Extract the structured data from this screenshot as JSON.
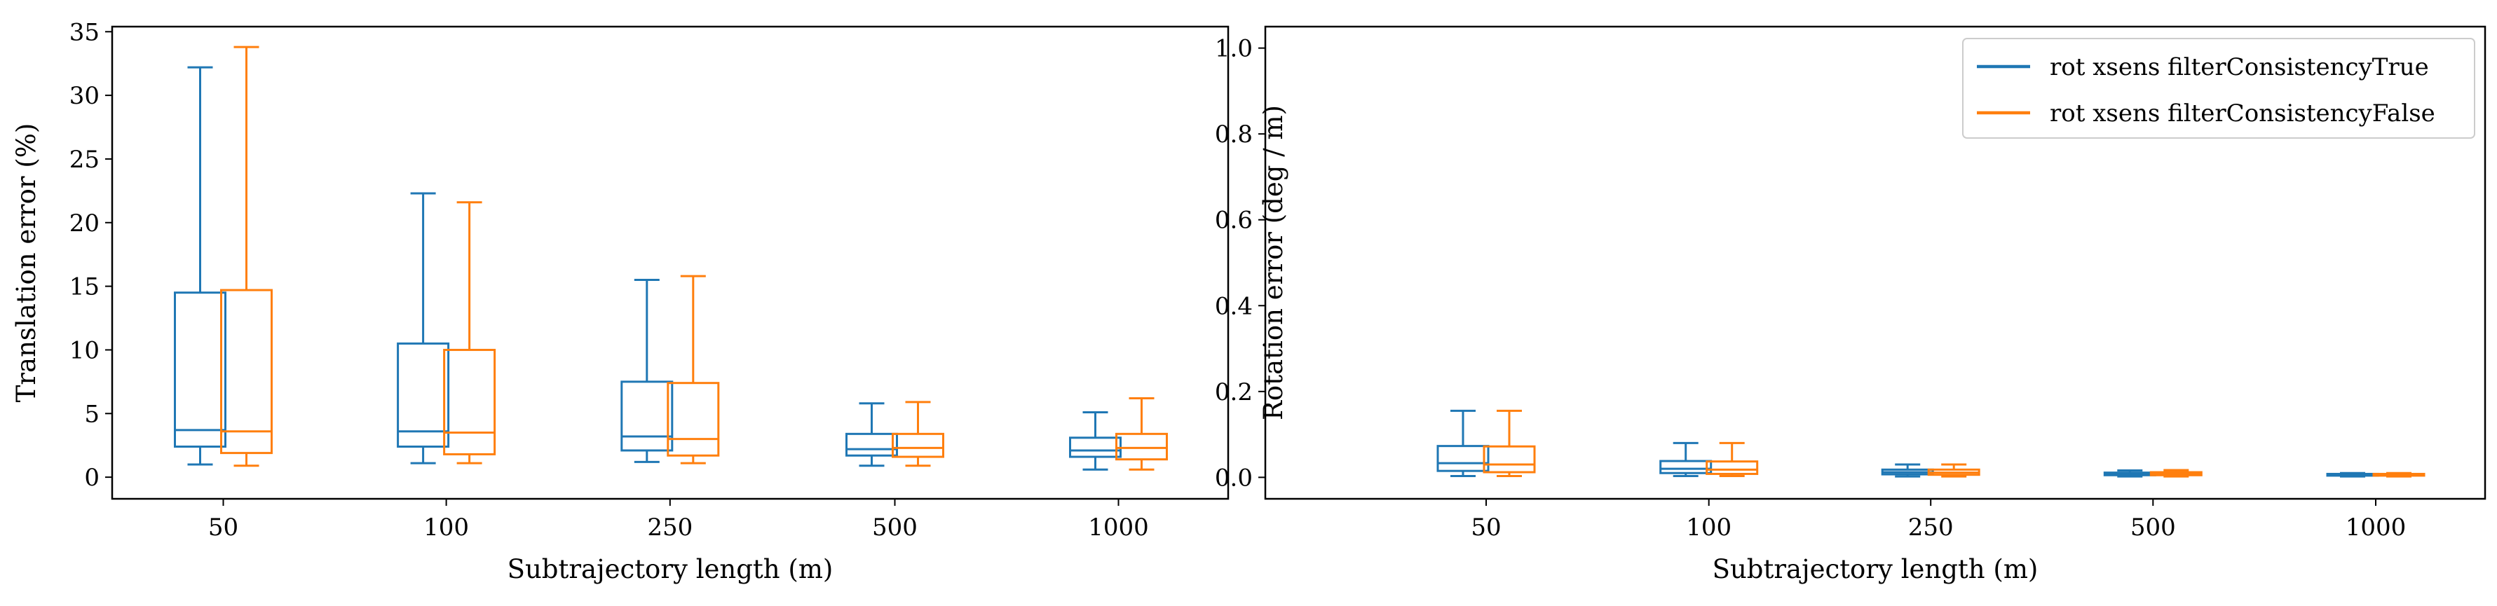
{
  "colors": {
    "series1": "#1f77b4",
    "series2": "#ff7f0e",
    "axis": "#000000",
    "legend_border": "#cccccc"
  },
  "chart_data": [
    {
      "type": "box",
      "xlabel": "Subtrajectory length (m)",
      "ylabel": "Translation error (%)",
      "categories": [
        "50",
        "100",
        "250",
        "500",
        "1000"
      ],
      "ylim": [
        -1.7,
        35.4
      ],
      "yticks": [
        0,
        5,
        10,
        15,
        20,
        25,
        30,
        35
      ],
      "ytick_labels": [
        "0",
        "5",
        "10",
        "15",
        "20",
        "25",
        "30",
        "35"
      ],
      "grid": false,
      "series": [
        {
          "boxes": [
            {
              "whislo": 1.0,
              "q1": 2.4,
              "med": 3.7,
              "q3": 14.5,
              "whishi": 32.2
            },
            {
              "whislo": 1.1,
              "q1": 2.4,
              "med": 3.6,
              "q3": 10.5,
              "whishi": 22.3
            },
            {
              "whislo": 1.2,
              "q1": 2.1,
              "med": 3.2,
              "q3": 7.5,
              "whishi": 15.5
            },
            {
              "whislo": 0.9,
              "q1": 1.7,
              "med": 2.2,
              "q3": 3.4,
              "whishi": 5.8
            },
            {
              "whislo": 0.6,
              "q1": 1.6,
              "med": 2.1,
              "q3": 3.1,
              "whishi": 5.1
            }
          ]
        },
        {
          "boxes": [
            {
              "whislo": 0.9,
              "q1": 1.9,
              "med": 3.6,
              "q3": 14.7,
              "whishi": 33.8
            },
            {
              "whislo": 1.1,
              "q1": 1.8,
              "med": 3.5,
              "q3": 10.0,
              "whishi": 21.6
            },
            {
              "whislo": 1.1,
              "q1": 1.7,
              "med": 3.0,
              "q3": 7.4,
              "whishi": 15.8
            },
            {
              "whislo": 0.9,
              "q1": 1.6,
              "med": 2.3,
              "q3": 3.4,
              "whishi": 5.9
            },
            {
              "whislo": 0.6,
              "q1": 1.4,
              "med": 2.3,
              "q3": 3.4,
              "whishi": 6.2
            }
          ]
        }
      ]
    },
    {
      "type": "box",
      "xlabel": "Subtrajectory length (m)",
      "ylabel": "Rotation error (deg / m)",
      "categories": [
        "50",
        "100",
        "250",
        "500",
        "1000"
      ],
      "ylim": [
        -0.05,
        1.05
      ],
      "yticks": [
        0.0,
        0.2,
        0.4,
        0.6,
        0.8,
        1.0
      ],
      "ytick_labels": [
        "0.0",
        "0.2",
        "0.4",
        "0.6",
        "0.8",
        "1.0"
      ],
      "grid": false,
      "legend": {
        "position": "top-right",
        "entries": [
          "rot xsens filterConsistencyTrue",
          "rot xsens filterConsistencyFalse"
        ]
      },
      "series": [
        {
          "name": "rot xsens filterConsistencyTrue",
          "boxes": [
            {
              "whislo": 0.003,
              "q1": 0.015,
              "med": 0.033,
              "q3": 0.073,
              "whishi": 0.155
            },
            {
              "whislo": 0.003,
              "q1": 0.01,
              "med": 0.02,
              "q3": 0.038,
              "whishi": 0.08
            },
            {
              "whislo": 0.002,
              "q1": 0.007,
              "med": 0.012,
              "q3": 0.018,
              "whishi": 0.03
            },
            {
              "whislo": 0.002,
              "q1": 0.005,
              "med": 0.008,
              "q3": 0.011,
              "whishi": 0.016
            },
            {
              "whislo": 0.002,
              "q1": 0.004,
              "med": 0.006,
              "q3": 0.008,
              "whishi": 0.01
            }
          ]
        },
        {
          "name": "rot xsens filterConsistencyFalse",
          "boxes": [
            {
              "whislo": 0.003,
              "q1": 0.012,
              "med": 0.03,
              "q3": 0.072,
              "whishi": 0.155
            },
            {
              "whislo": 0.003,
              "q1": 0.008,
              "med": 0.018,
              "q3": 0.037,
              "whishi": 0.08
            },
            {
              "whislo": 0.002,
              "q1": 0.006,
              "med": 0.011,
              "q3": 0.018,
              "whishi": 0.03
            },
            {
              "whislo": 0.002,
              "q1": 0.005,
              "med": 0.008,
              "q3": 0.012,
              "whishi": 0.017
            },
            {
              "whislo": 0.002,
              "q1": 0.004,
              "med": 0.006,
              "q3": 0.008,
              "whishi": 0.01
            }
          ]
        }
      ]
    }
  ]
}
